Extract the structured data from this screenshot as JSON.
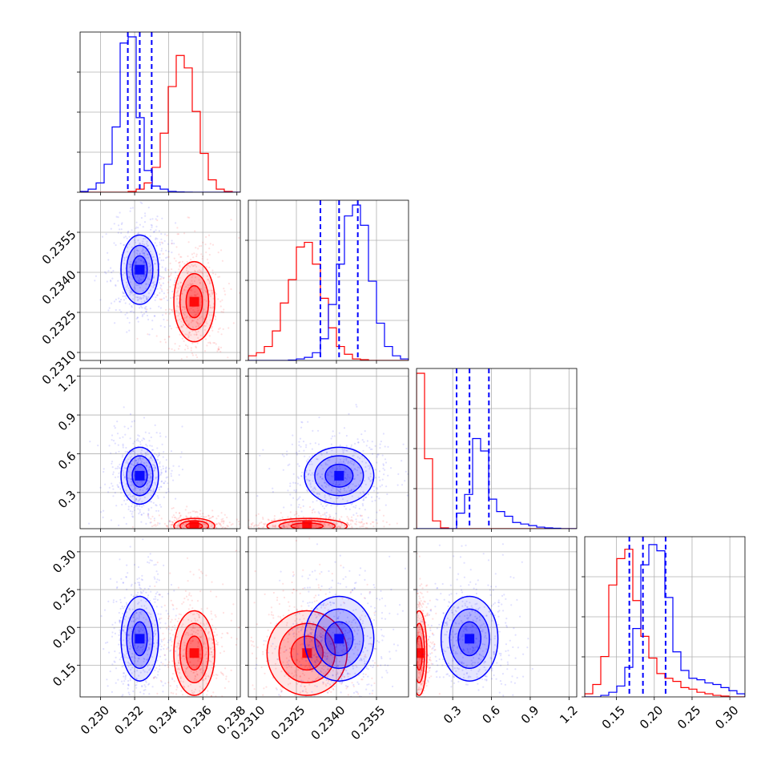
{
  "chart_data": {
    "type": "corner",
    "grid": true,
    "colors": {
      "series_a": "#0000ff",
      "series_b": "#ff0000"
    },
    "parameters": [
      {
        "ticks": [
          0.23,
          0.232,
          0.234,
          0.236,
          0.238
        ],
        "tick_labels": [
          "0.230",
          "0.232",
          "0.234",
          "0.236",
          "0.238"
        ],
        "range": [
          0.2288,
          0.2382
        ]
      },
      {
        "ticks": [
          0.231,
          0.2325,
          0.234,
          0.2355
        ],
        "tick_labels": [
          "0.2310",
          "0.2325",
          "0.2340",
          "0.2355"
        ],
        "range": [
          0.2307,
          0.2367
        ]
      },
      {
        "ticks": [
          0.3,
          0.6,
          0.9,
          1.2
        ],
        "tick_labels": [
          "0.3",
          "0.6",
          "0.9",
          "1.2"
        ],
        "range": [
          0.02,
          1.26
        ]
      },
      {
        "ticks": [
          0.15,
          0.2,
          0.25,
          0.3
        ],
        "tick_labels": [
          "0.15",
          "0.20",
          "0.25",
          "0.30"
        ],
        "range": [
          0.108,
          0.32
        ]
      }
    ],
    "series": [
      {
        "color": "#0000ff",
        "medians": [
          0.2323,
          0.2341,
          0.43,
          0.185
        ],
        "stds": [
          0.00055,
          0.00065,
          0.11,
          0.028
        ],
        "quantiles": [
          [
            0.2316,
            0.2323,
            0.233
          ],
          [
            0.2334,
            0.2341,
            0.2348
          ],
          [
            0.33,
            0.43,
            0.58
          ],
          [
            0.167,
            0.185,
            0.215
          ]
        ]
      },
      {
        "color": "#ff0000",
        "medians": [
          0.2355,
          0.2329,
          0.04,
          0.166
        ],
        "stds": [
          0.0006,
          0.00075,
          0.03,
          0.028
        ]
      }
    ],
    "histograms": [
      {
        "blue": [
          0.005,
          0.02,
          0.06,
          0.18,
          0.42,
          0.96,
          1.0,
          0.48,
          0.14,
          0.04,
          0.02,
          0.005,
          0.002,
          0.001,
          0,
          0,
          0,
          0,
          0,
          0
        ],
        "red": [
          0,
          0,
          0,
          0,
          0,
          0,
          0.005,
          0.02,
          0.06,
          0.16,
          0.38,
          0.68,
          0.88,
          0.8,
          0.52,
          0.25,
          0.08,
          0.02,
          0.005,
          0
        ]
      },
      {
        "blue": [
          0,
          0,
          0,
          0,
          0,
          0.003,
          0.01,
          0.02,
          0.05,
          0.14,
          0.36,
          0.62,
          0.93,
          1.0,
          0.87,
          0.51,
          0.24,
          0.09,
          0.03,
          0.01
        ],
        "red": [
          0.03,
          0.05,
          0.09,
          0.19,
          0.37,
          0.52,
          0.73,
          0.76,
          0.62,
          0.4,
          0.21,
          0.09,
          0.04,
          0.01,
          0.005,
          0,
          0,
          0,
          0,
          0
        ]
      },
      {
        "blue": [
          0,
          0,
          0,
          0,
          0,
          0.1,
          0.22,
          0.58,
          0.5,
          0.19,
          0.11,
          0.08,
          0.04,
          0.03,
          0.02,
          0.01,
          0.005,
          0.003,
          0,
          0
        ],
        "red": [
          1.0,
          0.45,
          0.05,
          0.005,
          0,
          0,
          0,
          0,
          0,
          0,
          0,
          0,
          0,
          0,
          0,
          0,
          0,
          0,
          0,
          0
        ]
      },
      {
        "blue": [
          0,
          0,
          0.01,
          0.03,
          0.07,
          0.19,
          0.44,
          0.85,
          0.98,
          0.94,
          0.64,
          0.29,
          0.17,
          0.12,
          0.11,
          0.09,
          0.08,
          0.06,
          0.04,
          0.02
        ],
        "red": [
          0.02,
          0.08,
          0.26,
          0.72,
          0.89,
          0.95,
          0.62,
          0.39,
          0.25,
          0.15,
          0.12,
          0.1,
          0.06,
          0.05,
          0.03,
          0.02,
          0.01,
          0.005,
          0,
          0
        ]
      }
    ]
  }
}
